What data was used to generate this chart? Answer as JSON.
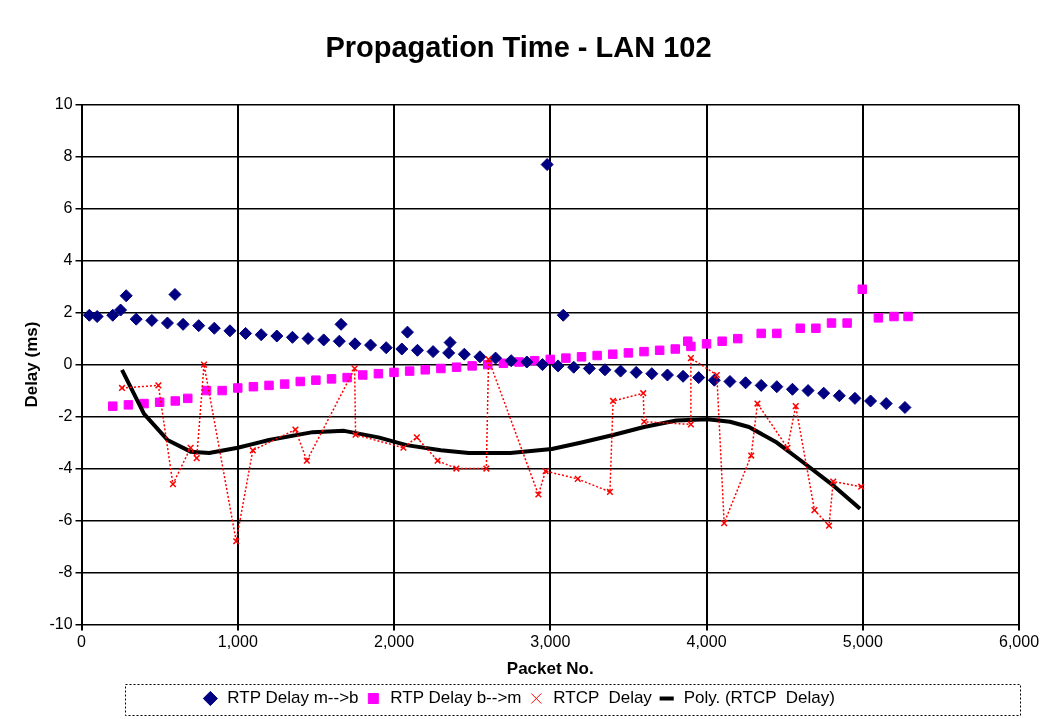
{
  "chart_data": {
    "type": "scatter",
    "title": "Propagation Time - LAN 102",
    "xlabel": "Packet No.",
    "ylabel": "Delay (ms)",
    "xlim": [
      0,
      6000
    ],
    "xticks": [
      0,
      {
        "value": 1000,
        "label": "1,000"
      },
      {
        "value": 2000,
        "label": "2,000"
      },
      {
        "value": 3000,
        "label": "3,000"
      },
      {
        "value": 4000,
        "label": "4,000"
      },
      {
        "value": 5000,
        "label": "5,000"
      },
      {
        "value": 6000,
        "label": "6,000"
      }
    ],
    "ylim": [
      -10,
      10
    ],
    "yticks": [
      -10,
      -8,
      -6,
      -4,
      -2,
      0,
      2,
      4,
      6,
      8,
      10
    ],
    "grid": true,
    "legend": "bottom",
    "series": [
      {
        "name": "RTP Delay m-->b",
        "type": "scatter",
        "marker": "diamond",
        "color": "#000080",
        "x": [
          50,
          100,
          200,
          250,
          286,
          350,
          450,
          550,
          598,
          650,
          750,
          850,
          950,
          1050,
          1150,
          1250,
          1350,
          1450,
          1550,
          1661,
          1650,
          1750,
          1850,
          1950,
          2050,
          2086,
          2150,
          2250,
          2359,
          2350,
          2450,
          2550,
          2650,
          2750,
          2850,
          2980,
          2950,
          3050,
          3083,
          3150,
          3250,
          3350,
          3450,
          3550,
          3650,
          3750,
          3850,
          3950,
          4050,
          4150,
          4250,
          4350,
          4450,
          4550,
          4650,
          4750,
          4850,
          4950,
          5050,
          5150,
          5270
        ],
        "values": [
          1.9,
          1.85,
          1.9,
          2.1,
          2.65,
          1.75,
          1.7,
          1.6,
          2.7,
          1.55,
          1.5,
          1.4,
          1.3,
          1.2,
          1.15,
          1.1,
          1.05,
          1.0,
          0.95,
          1.55,
          0.9,
          0.8,
          0.75,
          0.65,
          0.6,
          1.25,
          0.55,
          0.5,
          0.85,
          0.45,
          0.4,
          0.3,
          0.25,
          0.15,
          0.1,
          7.7,
          0.0,
          -0.05,
          1.9,
          -0.1,
          -0.15,
          -0.2,
          -0.25,
          -0.3,
          -0.35,
          -0.4,
          -0.45,
          -0.5,
          -0.6,
          -0.65,
          -0.7,
          -0.8,
          -0.85,
          -0.95,
          -1.0,
          -1.1,
          -1.2,
          -1.3,
          -1.4,
          -1.5,
          -1.65
        ]
      },
      {
        "name": "RTP Delay b-->m",
        "type": "scatter",
        "marker": "square",
        "color": "#ff00ff",
        "x": [
          200,
          300,
          400,
          500,
          600,
          680,
          800,
          900,
          1000,
          1100,
          1200,
          1300,
          1400,
          1500,
          1600,
          1700,
          1800,
          1900,
          2000,
          2100,
          2200,
          2300,
          2400,
          2500,
          2600,
          2700,
          2800,
          2900,
          3000,
          3100,
          3200,
          3300,
          3400,
          3500,
          3600,
          3700,
          3800,
          3880,
          3900,
          4000,
          4100,
          4200,
          4350,
          4450,
          4600,
          4700,
          4800,
          4900,
          4997,
          5100,
          5200,
          5290
        ],
        "values": [
          -1.6,
          -1.55,
          -1.5,
          -1.45,
          -1.4,
          -1.3,
          -1.0,
          -1.0,
          -0.9,
          -0.85,
          -0.8,
          -0.75,
          -0.65,
          -0.6,
          -0.55,
          -0.5,
          -0.4,
          -0.35,
          -0.3,
          -0.25,
          -0.2,
          -0.15,
          -0.1,
          -0.05,
          0.0,
          0.05,
          0.1,
          0.15,
          0.2,
          0.25,
          0.3,
          0.35,
          0.4,
          0.45,
          0.5,
          0.55,
          0.6,
          0.9,
          0.7,
          0.8,
          0.9,
          1.0,
          1.2,
          1.2,
          1.4,
          1.4,
          1.6,
          1.6,
          2.9,
          1.8,
          1.85,
          1.85
        ]
      },
      {
        "name": "RTCP  Delay",
        "type": "line",
        "marker": "cross",
        "line_style": "dotted",
        "color": "#ff0000",
        "x": [
          259,
          492,
          585,
          698,
          737,
          784,
          990,
          1096,
          1369,
          1442,
          1748,
          1754,
          2060,
          2146,
          2279,
          2399,
          2591,
          2605,
          2924,
          2970,
          3176,
          3382,
          3402,
          3595,
          3601,
          3900,
          3900,
          4066,
          4113,
          4286,
          4326,
          4518,
          4571,
          4691,
          4784,
          4811,
          4990
        ],
        "values": [
          -0.9,
          -0.8,
          -4.6,
          -3.2,
          -3.6,
          0.0,
          -6.8,
          -3.3,
          -2.5,
          -3.7,
          -0.15,
          -2.7,
          -3.2,
          -2.8,
          -3.7,
          -4.0,
          -4.0,
          0.2,
          -5.0,
          -4.1,
          -4.4,
          -4.9,
          -1.4,
          -1.1,
          -2.2,
          -2.3,
          0.25,
          -0.4,
          -6.1,
          -3.5,
          -1.5,
          -3.2,
          -1.6,
          -5.6,
          -6.2,
          -4.5,
          -4.7
        ]
      },
      {
        "name": "Poly. (RTCP  Delay)",
        "type": "line",
        "marker": "none",
        "line_style": "solid",
        "color": "#000000",
        "x": [
          259,
          400,
          550,
          698,
          817,
          1000,
          1200,
          1480,
          1681,
          1900,
          2080,
          2300,
          2478,
          2744,
          3010,
          3200,
          3409,
          3600,
          3807,
          4007,
          4150,
          4272,
          4450,
          4605,
          4800,
          4983
        ],
        "values": [
          -0.2,
          -1.9,
          -2.9,
          -3.35,
          -3.4,
          -3.2,
          -2.9,
          -2.6,
          -2.55,
          -2.8,
          -3.1,
          -3.3,
          -3.4,
          -3.4,
          -3.25,
          -3.0,
          -2.7,
          -2.4,
          -2.15,
          -2.1,
          -2.2,
          -2.4,
          -3.0,
          -3.7,
          -4.6,
          -5.55
        ]
      }
    ]
  }
}
